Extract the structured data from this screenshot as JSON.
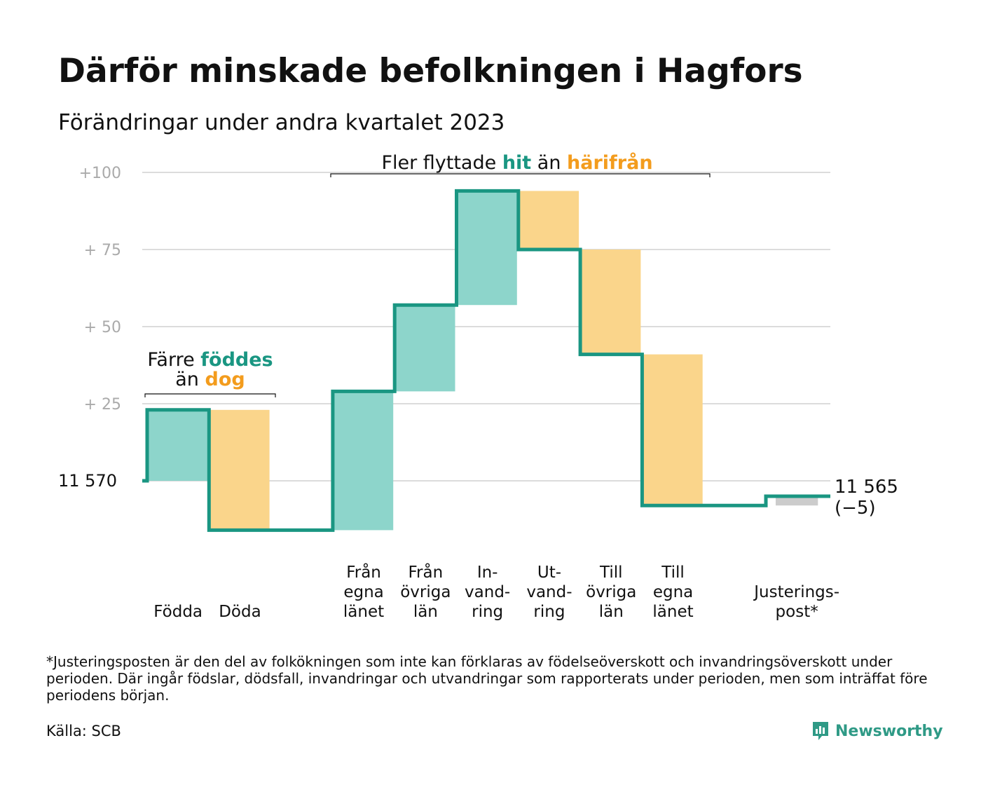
{
  "title": "Därför minskade befolkningen i Hagfors",
  "subtitle": "Förändringar under andra kvartalet 2023",
  "chart_data": {
    "type": "waterfall",
    "start_value": 11570,
    "start_label": "11  570",
    "end_value": 11565,
    "end_label": "11 565",
    "end_change_label": "(−5)",
    "y_ticks": [
      {
        "value": 100,
        "label": "+100"
      },
      {
        "value": 75,
        "label": "+  75"
      },
      {
        "value": 50,
        "label": "+  50"
      },
      {
        "value": 25,
        "label": "+  25"
      }
    ],
    "ylim": [
      -20,
      103
    ],
    "steps": [
      {
        "lines": [
          "Födda"
        ],
        "value": 23,
        "kind": "in"
      },
      {
        "lines": [
          "Döda"
        ],
        "value": -39,
        "kind": "out"
      },
      {
        "lines": [],
        "value": 0,
        "kind": "none"
      },
      {
        "lines": [
          "Från",
          "egna",
          "länet"
        ],
        "value": 45,
        "kind": "in"
      },
      {
        "lines": [
          "Från",
          "övriga",
          "län"
        ],
        "value": 28,
        "kind": "in"
      },
      {
        "lines": [
          "In-",
          "vand-",
          "ring"
        ],
        "value": 37,
        "kind": "in"
      },
      {
        "lines": [
          "Ut-",
          "vand-",
          "ring"
        ],
        "value": -19,
        "kind": "out"
      },
      {
        "lines": [
          "Till",
          "övriga",
          "län"
        ],
        "value": -34,
        "kind": "out"
      },
      {
        "lines": [
          "Till",
          "egna",
          "länet"
        ],
        "value": -49,
        "kind": "out"
      },
      {
        "lines": [],
        "value": 0,
        "kind": "none"
      },
      {
        "lines": [
          "Justerings-",
          "post*"
        ],
        "value": 3,
        "kind": "adj"
      }
    ],
    "annotations": {
      "births": {
        "line1": "Färre",
        "word_in": "föddes",
        "line2_pre": "än",
        "word_out": "dog"
      },
      "migration": {
        "pre": "Fler flyttade",
        "word_in": "hit",
        "mid": "än",
        "word_out": "härifrån"
      }
    }
  },
  "colors": {
    "in": "#8dd5cb",
    "out": "#fad58b",
    "adj": "#cccccc",
    "line": "#1a9682",
    "in_text": "#1a9682",
    "out_text": "#f39c1d",
    "grid": "#dcdcdc",
    "tick": "#aaaaaa"
  },
  "footnote": "*Justeringsposten är den del av folkökningen som inte kan förklaras av födelseöverskott och invandringsöverskott under perioden. Där ingår födslar, dödsfall, invandringar och utvandringar som rapporterats under perioden, men som inträffat före periodens början.",
  "source": "Källa: SCB",
  "brand": "Newsworthy"
}
